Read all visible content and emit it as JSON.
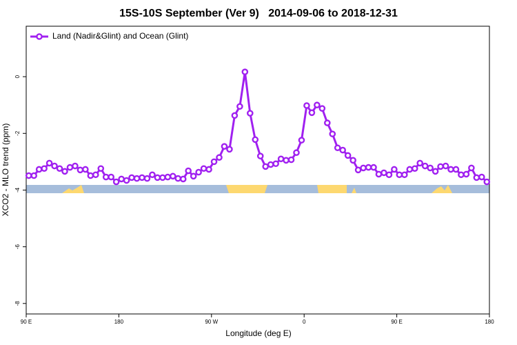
{
  "chart_data": {
    "type": "line",
    "title": "15S-10S September (Ver 9)   2014-09-06 to 2018-12-31",
    "x_label": "Longitude (deg E)",
    "y_label": "XCO2 - MLO trend (ppm)",
    "legend": "upper left",
    "xlim": [
      90,
      540
    ],
    "ylim": [
      -8.37,
      1.78
    ],
    "xticks": [
      {
        "value": 90,
        "label": "90 E"
      },
      {
        "value": 180,
        "label": "180"
      },
      {
        "value": 270,
        "label": "90 W"
      },
      {
        "value": 360,
        "label": "0"
      },
      {
        "value": 450,
        "label": "90 E"
      },
      {
        "value": 540,
        "label": "180"
      }
    ],
    "yticks": [
      0,
      -2,
      -4,
      -6,
      -8
    ],
    "x": [
      92.5,
      97.5,
      102.5,
      107.5,
      112.5,
      117.5,
      122.5,
      127.5,
      132.5,
      137.5,
      142.5,
      147.5,
      152.5,
      157.5,
      162.5,
      167.5,
      172.5,
      177.5,
      182.5,
      187.5,
      192.5,
      197.5,
      202.5,
      207.5,
      212.5,
      217.5,
      222.5,
      227.5,
      232.5,
      237.5,
      242.5,
      247.5,
      252.5,
      257.5,
      262.5,
      267.5,
      272.5,
      277.5,
      282.5,
      287.5,
      292.5,
      297.5,
      302.5,
      307.5,
      312.5,
      317.5,
      322.5,
      327.5,
      332.5,
      337.5,
      342.5,
      347.5,
      352.5,
      357.5,
      362.5,
      367.5,
      372.5,
      377.5,
      382.5,
      387.5,
      392.5,
      397.5,
      402.5,
      407.5,
      412.5,
      417.5,
      422.5,
      427.5,
      432.5,
      437.5,
      442.5,
      447.5,
      452.5,
      457.5,
      462.5,
      467.5,
      472.5,
      477.5,
      482.5,
      487.5,
      492.5,
      497.5,
      502.5,
      507.5,
      512.5,
      517.5,
      522.5,
      527.5,
      532.5,
      537.5
    ],
    "series": [
      {
        "name": "Land (Nadir&Glint) and Ocean (Glint)",
        "color": "#a020f0",
        "values": [
          -3.49,
          -3.49,
          -3.27,
          -3.24,
          -3.05,
          -3.15,
          -3.24,
          -3.34,
          -3.2,
          -3.15,
          -3.29,
          -3.27,
          -3.49,
          -3.46,
          -3.24,
          -3.54,
          -3.54,
          -3.71,
          -3.61,
          -3.66,
          -3.56,
          -3.59,
          -3.56,
          -3.59,
          -3.46,
          -3.56,
          -3.56,
          -3.54,
          -3.51,
          -3.59,
          -3.61,
          -3.32,
          -3.51,
          -3.37,
          -3.24,
          -3.27,
          -3.0,
          -2.85,
          -2.46,
          -2.56,
          -1.37,
          -1.05,
          0.17,
          -1.29,
          -2.22,
          -2.8,
          -3.17,
          -3.1,
          -3.07,
          -2.9,
          -2.95,
          -2.93,
          -2.68,
          -2.24,
          -1.02,
          -1.27,
          -1.0,
          -1.12,
          -1.63,
          -2.02,
          -2.51,
          -2.59,
          -2.78,
          -2.95,
          -3.29,
          -3.22,
          -3.2,
          -3.2,
          -3.44,
          -3.39,
          -3.46,
          -3.27,
          -3.46,
          -3.46,
          -3.27,
          -3.24,
          -3.05,
          -3.15,
          -3.22,
          -3.34,
          -3.17,
          -3.15,
          -3.27,
          -3.27,
          -3.46,
          -3.44,
          -3.22,
          -3.56,
          -3.54,
          -3.71
        ]
      }
    ]
  }
}
